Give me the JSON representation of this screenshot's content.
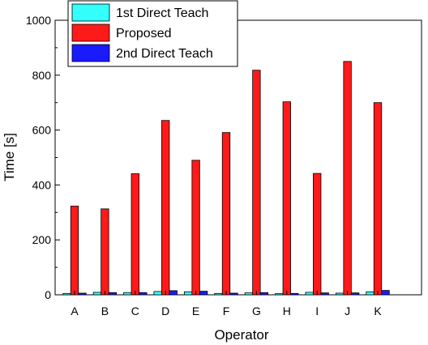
{
  "chart_data": {
    "type": "bar",
    "xlabel": "Operator",
    "ylabel": "Time [s]",
    "ylim": [
      0,
      1000
    ],
    "yticks": [
      0,
      200,
      400,
      600,
      800,
      1000
    ],
    "categories": [
      "A",
      "B",
      "C",
      "D",
      "E",
      "F",
      "G",
      "H",
      "I",
      "J",
      "K"
    ],
    "series": [
      {
        "name": "1st Direct Teach",
        "color": "#33ffff",
        "values": [
          5,
          9,
          8,
          12,
          11,
          5,
          7,
          4,
          9,
          6,
          11
        ]
      },
      {
        "name": "Proposed",
        "color": "#ff1a1a",
        "values": [
          323,
          313,
          441,
          635,
          490,
          591,
          818,
          703,
          442,
          850,
          700
        ]
      },
      {
        "name": "2nd Direct Teach",
        "color": "#1a1aff",
        "values": [
          6,
          8,
          8,
          15,
          13,
          6,
          8,
          5,
          7,
          7,
          16
        ]
      }
    ],
    "legend": {
      "position": "top-left"
    },
    "grid": false
  }
}
